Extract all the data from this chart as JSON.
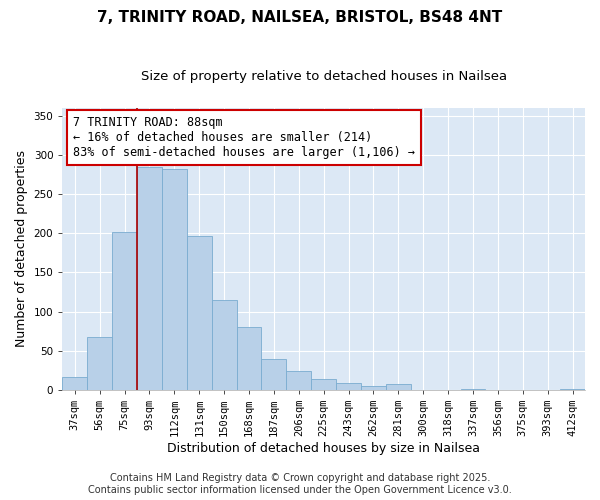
{
  "title": "7, TRINITY ROAD, NAILSEA, BRISTOL, BS48 4NT",
  "subtitle": "Size of property relative to detached houses in Nailsea",
  "xlabel": "Distribution of detached houses by size in Nailsea",
  "ylabel": "Number of detached properties",
  "bar_labels": [
    "37sqm",
    "56sqm",
    "75sqm",
    "93sqm",
    "112sqm",
    "131sqm",
    "150sqm",
    "168sqm",
    "187sqm",
    "206sqm",
    "225sqm",
    "243sqm",
    "262sqm",
    "281sqm",
    "300sqm",
    "318sqm",
    "337sqm",
    "356sqm",
    "375sqm",
    "393sqm",
    "412sqm"
  ],
  "bar_values": [
    17,
    68,
    201,
    285,
    282,
    197,
    115,
    80,
    40,
    24,
    14,
    9,
    5,
    7,
    0,
    0,
    1,
    0,
    0,
    0,
    1
  ],
  "bar_color": "#b8d0e8",
  "bar_edge_color": "#7aacd0",
  "vline_color": "#aa0000",
  "annotation_title": "7 TRINITY ROAD: 88sqm",
  "annotation_line1": "← 16% of detached houses are smaller (214)",
  "annotation_line2": "83% of semi-detached houses are larger (1,106) →",
  "annotation_box_color": "#ffffff",
  "annotation_box_edge": "#cc0000",
  "ylim": [
    0,
    360
  ],
  "yticks": [
    0,
    50,
    100,
    150,
    200,
    250,
    300,
    350
  ],
  "background_color": "#dce8f5",
  "footer1": "Contains HM Land Registry data © Crown copyright and database right 2025.",
  "footer2": "Contains public sector information licensed under the Open Government Licence v3.0.",
  "title_fontsize": 11,
  "subtitle_fontsize": 9.5,
  "axis_label_fontsize": 9,
  "tick_fontsize": 7.5,
  "annotation_title_fontsize": 9,
  "annotation_body_fontsize": 8.5,
  "footer_fontsize": 7
}
